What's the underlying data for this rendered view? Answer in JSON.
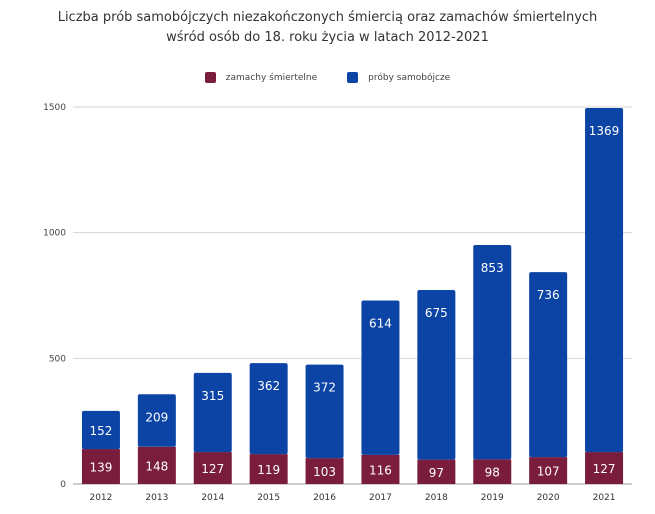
{
  "chart_data": {
    "type": "bar",
    "stacked": true,
    "title_line1": "Liczba prób samobójczych niezakończonych śmiercią oraz zamachów śmiertelnych",
    "title_line2": "wśród osób do 18. roku życia w latach 2012-2021",
    "xlabel": "",
    "ylabel": "",
    "ylim": [
      0,
      1500
    ],
    "yticks": [
      0,
      500,
      1000,
      1500
    ],
    "grid": true,
    "legend_position": "top-center",
    "categories": [
      "2012",
      "2013",
      "2014",
      "2015",
      "2016",
      "2017",
      "2018",
      "2019",
      "2020",
      "2021"
    ],
    "series": [
      {
        "name": "zamachy śmiertelne",
        "color": "#7a1c3b",
        "values": [
          139,
          148,
          127,
          119,
          103,
          116,
          97,
          98,
          107,
          127
        ]
      },
      {
        "name": "próby samobójcze",
        "color": "#0c44a6",
        "values": [
          152,
          209,
          315,
          362,
          372,
          614,
          675,
          853,
          736,
          1369
        ]
      }
    ]
  }
}
